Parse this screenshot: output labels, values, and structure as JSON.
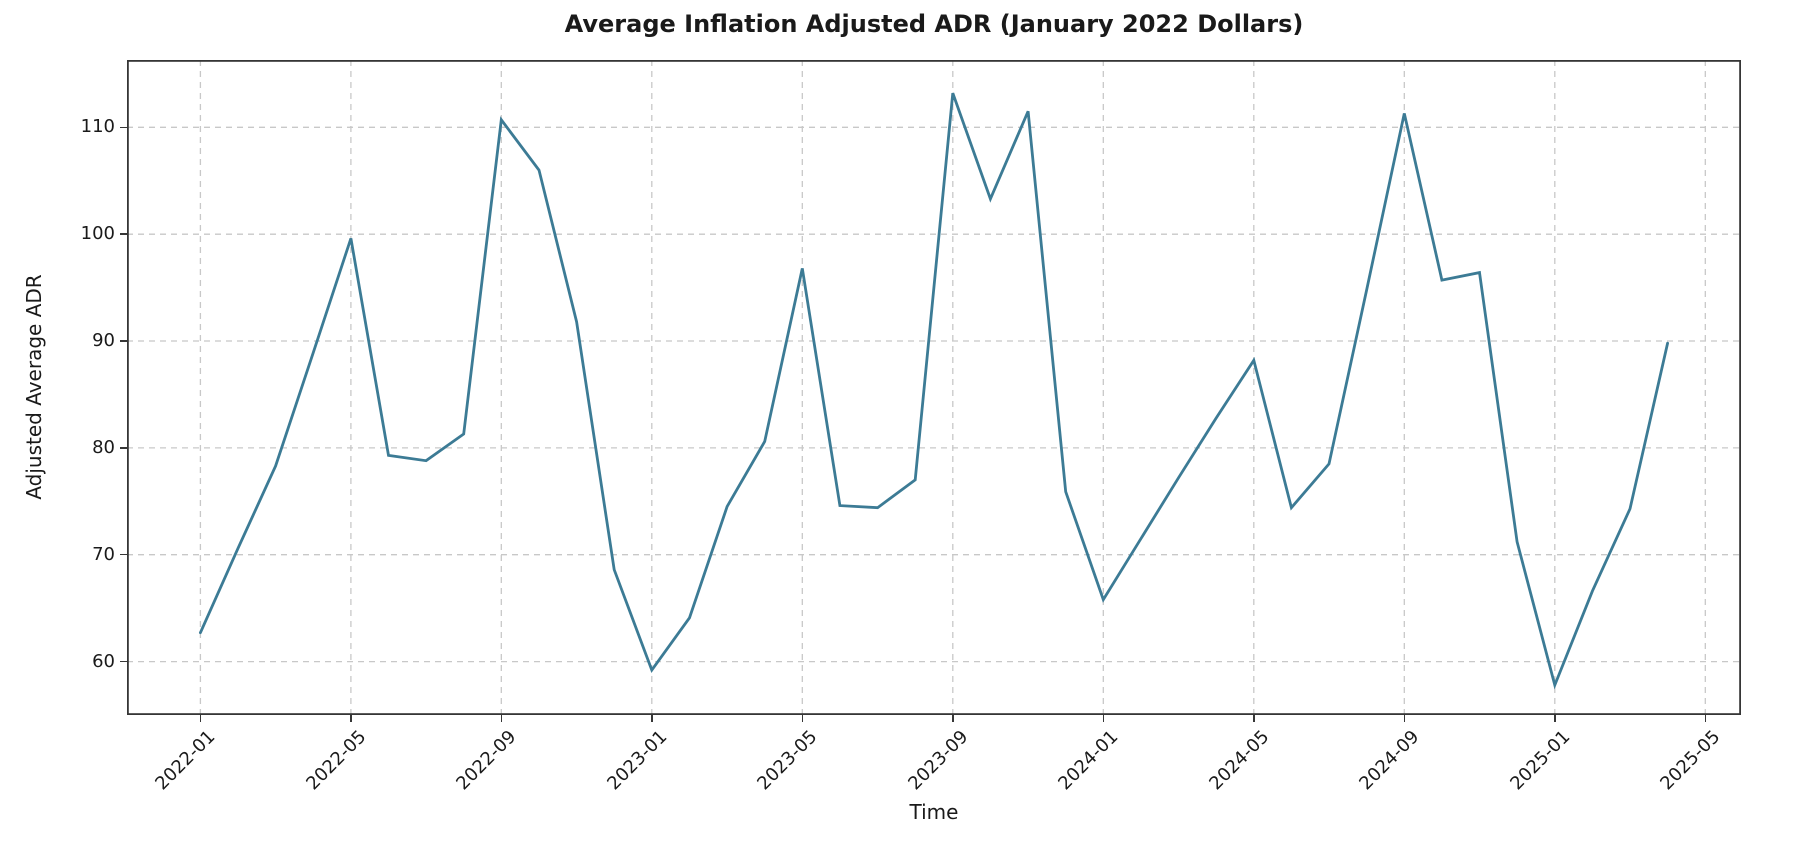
{
  "chart_data": {
    "type": "line",
    "title": "Average Inflation Adjusted ADR (January 2022 Dollars)",
    "xlabel": "Time",
    "ylabel": "Adjusted Average ADR",
    "x": [
      "2022-01",
      "2022-02",
      "2022-03",
      "2022-04",
      "2022-05",
      "2022-06",
      "2022-07",
      "2022-08",
      "2022-09",
      "2022-10",
      "2022-11",
      "2022-12",
      "2023-01",
      "2023-02",
      "2023-03",
      "2023-04",
      "2023-05",
      "2023-06",
      "2023-07",
      "2023-08",
      "2023-09",
      "2023-10",
      "2023-11",
      "2023-12",
      "2024-01",
      "2024-02",
      "2024-03",
      "2024-04",
      "2024-05",
      "2024-06",
      "2024-07",
      "2024-08",
      "2024-09",
      "2024-10",
      "2024-11",
      "2024-12",
      "2025-01",
      "2025-02",
      "2025-03",
      "2025-04"
    ],
    "values": [
      62.7,
      70.6,
      78.3,
      88.9,
      99.6,
      79.3,
      78.8,
      81.3,
      110.7,
      106.0,
      91.8,
      68.6,
      59.2,
      64.1,
      74.5,
      80.6,
      96.8,
      74.6,
      74.4,
      77.0,
      113.2,
      103.3,
      111.5,
      75.9,
      65.8,
      71.5,
      77.2,
      82.8,
      88.2,
      74.4,
      78.5,
      94.8,
      111.3,
      95.7,
      96.4,
      71.2,
      57.8,
      66.6,
      74.3,
      89.8
    ],
    "x_tick_months": [
      0,
      4,
      8,
      12,
      16,
      20,
      24,
      28,
      32,
      36,
      40
    ],
    "x_tick_labels": [
      "2022-01",
      "2022-05",
      "2022-09",
      "2023-01",
      "2023-05",
      "2023-09",
      "2024-01",
      "2024-05",
      "2024-09",
      "2025-01",
      "2025-05"
    ],
    "y_ticks": [
      60,
      70,
      80,
      90,
      100,
      110
    ],
    "ylim": [
      55.0,
      116.3
    ],
    "xlim_months": [
      -1.95,
      40.95
    ],
    "grid": true,
    "grid_dashed": true,
    "legend": "none",
    "line_color": "#3c7b95",
    "grid_color": "#c8c8c8",
    "spine_color": "#363636",
    "text_color": "#1a1a1a",
    "background_color": "#ffffff",
    "line_width": 2.8
  }
}
